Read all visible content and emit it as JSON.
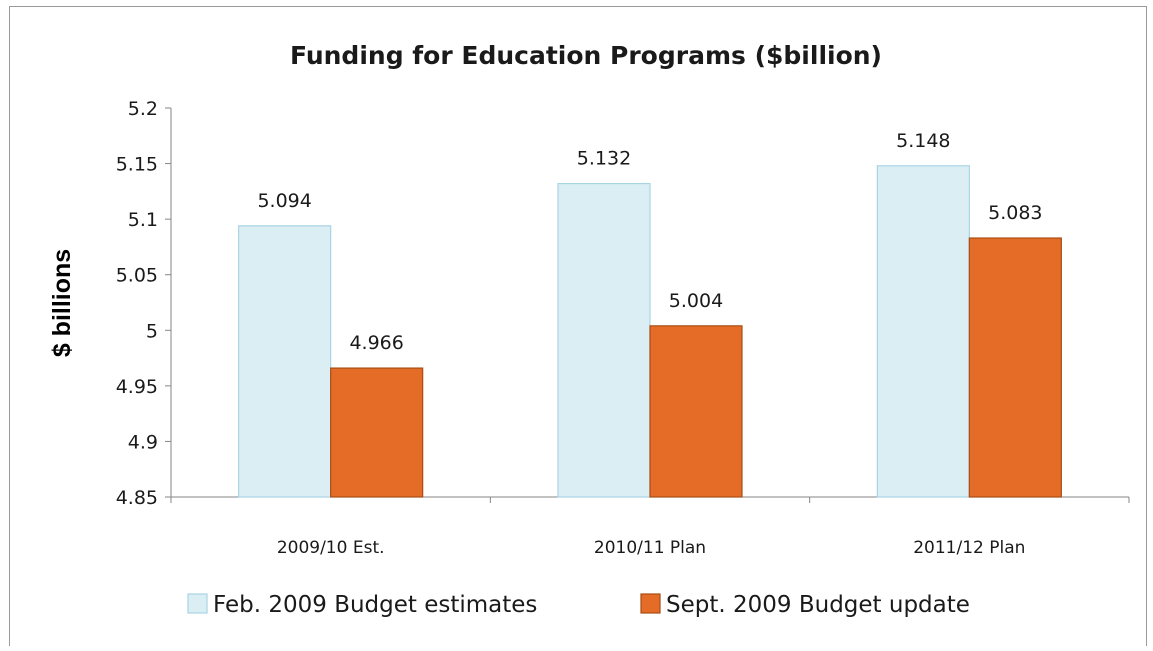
{
  "chart_data": {
    "type": "bar",
    "title": "Funding for Education Programs ($billion)",
    "xlabel": "",
    "ylabel": "$ billions",
    "categories": [
      "2009/10 Est.",
      "2010/11 Plan",
      "2011/12 Plan"
    ],
    "series": [
      {
        "name": "Feb. 2009 Budget estimates",
        "values": [
          5.094,
          5.132,
          5.148
        ],
        "labels": [
          "5.094",
          "5.132",
          "5.148"
        ],
        "color": "#dbeef4",
        "border_color": "#a9d4e4"
      },
      {
        "name": "Sept. 2009 Budget update",
        "values": [
          4.966,
          5.004,
          5.083
        ],
        "labels": [
          "4.966",
          "5.004",
          "5.083"
        ],
        "color": "#e46c26",
        "border_color": "#a84d14"
      }
    ],
    "ylim": [
      4.85,
      5.2
    ],
    "yticks": [
      "4.85",
      "4.9",
      "4.95",
      "5",
      "5.05",
      "5.1",
      "5.15",
      "5.2"
    ],
    "grid": false,
    "legend_position": "bottom"
  }
}
